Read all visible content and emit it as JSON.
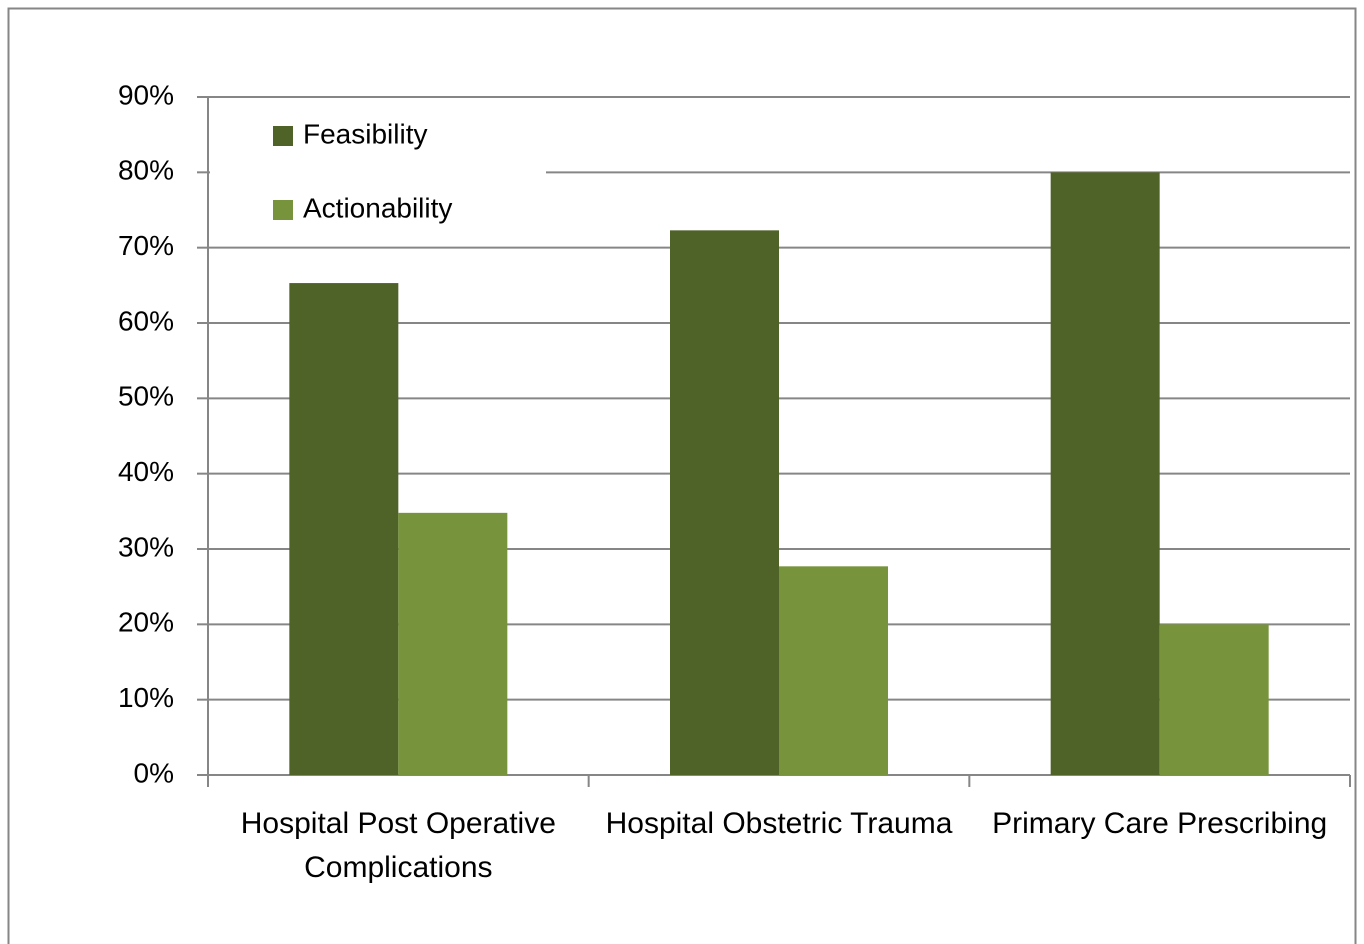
{
  "chart_data": {
    "type": "bar",
    "categories": [
      "Hospital Post Operative Complications",
      "Hospital Obstetric Trauma",
      "Primary Care Prescribing"
    ],
    "series": [
      {
        "name": "Feasibility",
        "color": "#4f6228",
        "values": [
          65.3,
          72.3,
          80
        ]
      },
      {
        "name": "Actionability",
        "color": "#77933c",
        "values": [
          34.8,
          27.7,
          20
        ]
      }
    ],
    "ylim": [
      0,
      90
    ],
    "yticks": [
      {
        "value": 0,
        "label": "0%"
      },
      {
        "value": 10,
        "label": "10%"
      },
      {
        "value": 20,
        "label": "20%"
      },
      {
        "value": 30,
        "label": "30%"
      },
      {
        "value": 40,
        "label": "40%"
      },
      {
        "value": 50,
        "label": "50%"
      },
      {
        "value": 60,
        "label": "60%"
      },
      {
        "value": 70,
        "label": "70%"
      },
      {
        "value": 80,
        "label": "80%"
      },
      {
        "value": 90,
        "label": "90%"
      }
    ],
    "grid": true,
    "legend": "top-left"
  }
}
